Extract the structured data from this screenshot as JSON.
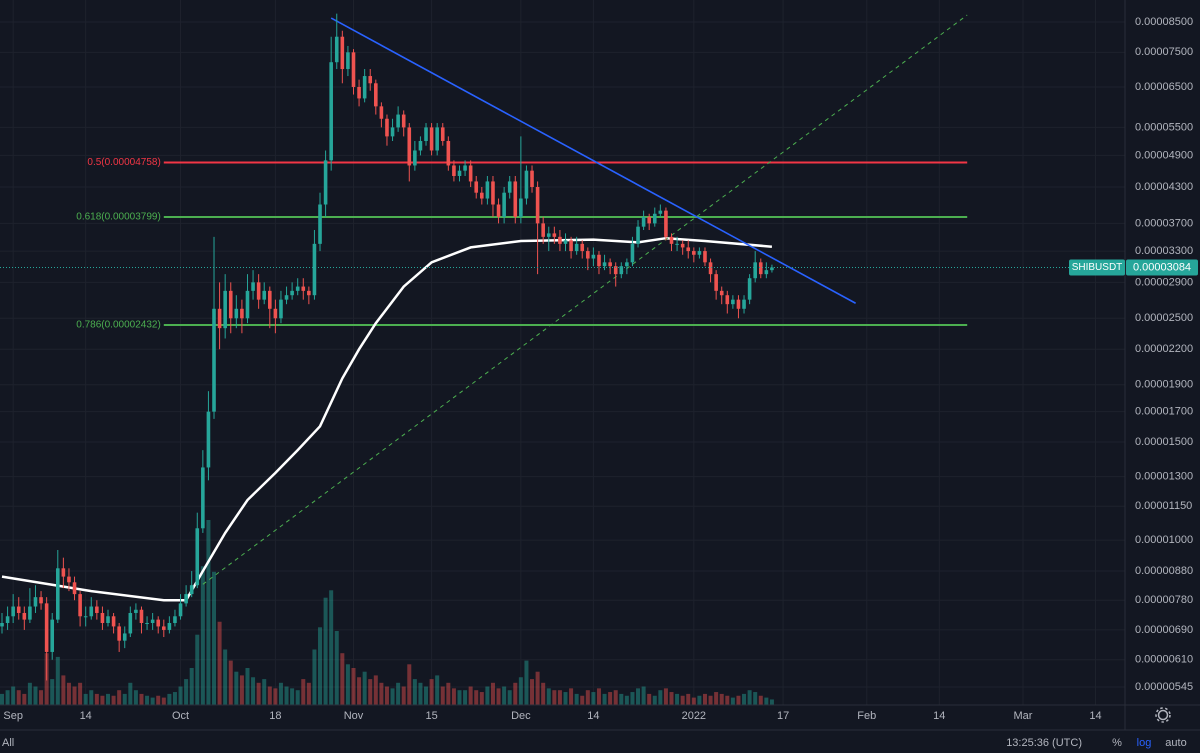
{
  "chart_data": {
    "type": "candlestick",
    "symbol": "SHIBUSDT",
    "last_price": 3.084e-05,
    "log": true,
    "grid": true,
    "up_color": "#26a69a",
    "down_color": "#ef5350",
    "xlim": [
      "2021-08-30",
      "2022-03-20"
    ],
    "ylim": [
      5.06e-06,
      9.31e-05
    ],
    "xticks": [
      {
        "value": "2021-09-01",
        "label": "Sep"
      },
      {
        "value": "2021-09-14",
        "label": "14"
      },
      {
        "value": "2021-10-01",
        "label": "Oct"
      },
      {
        "value": "2021-10-18",
        "label": "18"
      },
      {
        "value": "2021-11-01",
        "label": "Nov"
      },
      {
        "value": "2021-11-15",
        "label": "15"
      },
      {
        "value": "2021-12-01",
        "label": "Dec"
      },
      {
        "value": "2021-12-14",
        "label": "14"
      },
      {
        "value": "2022-01-01",
        "label": "2022"
      },
      {
        "value": "2022-01-17",
        "label": "17"
      },
      {
        "value": "2022-02-01",
        "label": "Feb"
      },
      {
        "value": "2022-02-14",
        "label": "14"
      },
      {
        "value": "2022-03-01",
        "label": "Mar"
      },
      {
        "value": "2022-03-14",
        "label": "14"
      }
    ],
    "yticks": [
      {
        "value": 8.5e-05,
        "label": "0.00008500"
      },
      {
        "value": 7.5e-05,
        "label": "0.00007500"
      },
      {
        "value": 6.5e-05,
        "label": "0.00006500"
      },
      {
        "value": 5.5e-05,
        "label": "0.00005500"
      },
      {
        "value": 4.9e-05,
        "label": "0.00004900"
      },
      {
        "value": 4.3e-05,
        "label": "0.00004300"
      },
      {
        "value": 3.7e-05,
        "label": "0.00003700"
      },
      {
        "value": 3.3e-05,
        "label": "0.00003300"
      },
      {
        "value": 2.9e-05,
        "label": "0.00002900"
      },
      {
        "value": 2.5e-05,
        "label": "0.00002500"
      },
      {
        "value": 2.2e-05,
        "label": "0.00002200"
      },
      {
        "value": 1.9e-05,
        "label": "0.00001900"
      },
      {
        "value": 1.7e-05,
        "label": "0.00001700"
      },
      {
        "value": 1.5e-05,
        "label": "0.00001500"
      },
      {
        "value": 1.3e-05,
        "label": "0.00001300"
      },
      {
        "value": 1.15e-05,
        "label": "0.00001150"
      },
      {
        "value": 1e-05,
        "label": "0.00001000"
      },
      {
        "value": 8.8e-06,
        "label": "0.00000880"
      },
      {
        "value": 7.8e-06,
        "label": "0.00000780"
      },
      {
        "value": 6.9e-06,
        "label": "0.00000690"
      },
      {
        "value": 6.1e-06,
        "label": "0.00000610"
      },
      5.45e-06
    ],
    "x": [
      "2021-08-30",
      "2021-08-31",
      "2021-09-01",
      "2021-09-02",
      "2021-09-03",
      "2021-09-04",
      "2021-09-05",
      "2021-09-06",
      "2021-09-07",
      "2021-09-08",
      "2021-09-09",
      "2021-09-10",
      "2021-09-11",
      "2021-09-12",
      "2021-09-13",
      "2021-09-14",
      "2021-09-15",
      "2021-09-16",
      "2021-09-17",
      "2021-09-18",
      "2021-09-19",
      "2021-09-20",
      "2021-09-21",
      "2021-09-22",
      "2021-09-23",
      "2021-09-24",
      "2021-09-25",
      "2021-09-26",
      "2021-09-27",
      "2021-09-28",
      "2021-09-29",
      "2021-09-30",
      "2021-10-01",
      "2021-10-02",
      "2021-10-03",
      "2021-10-04",
      "2021-10-05",
      "2021-10-06",
      "2021-10-07",
      "2021-10-08",
      "2021-10-09",
      "2021-10-10",
      "2021-10-11",
      "2021-10-12",
      "2021-10-13",
      "2021-10-14",
      "2021-10-15",
      "2021-10-16",
      "2021-10-17",
      "2021-10-18",
      "2021-10-19",
      "2021-10-20",
      "2021-10-21",
      "2021-10-22",
      "2021-10-23",
      "2021-10-24",
      "2021-10-25",
      "2021-10-26",
      "2021-10-27",
      "2021-10-28",
      "2021-10-29",
      "2021-10-30",
      "2021-10-31",
      "2021-11-01",
      "2021-11-02",
      "2021-11-03",
      "2021-11-04",
      "2021-11-05",
      "2021-11-06",
      "2021-11-07",
      "2021-11-08",
      "2021-11-09",
      "2021-11-10",
      "2021-11-11",
      "2021-11-12",
      "2021-11-13",
      "2021-11-14",
      "2021-11-15",
      "2021-11-16",
      "2021-11-17",
      "2021-11-18",
      "2021-11-19",
      "2021-11-20",
      "2021-11-21",
      "2021-11-22",
      "2021-11-23",
      "2021-11-24",
      "2021-11-25",
      "2021-11-26",
      "2021-11-27",
      "2021-11-28",
      "2021-11-29",
      "2021-11-30",
      "2021-12-01",
      "2021-12-02",
      "2021-12-03",
      "2021-12-04",
      "2021-12-05",
      "2021-12-06",
      "2021-12-07",
      "2021-12-08",
      "2021-12-09",
      "2021-12-10",
      "2021-12-11",
      "2021-12-12",
      "2021-12-13",
      "2021-12-14",
      "2021-12-15",
      "2021-12-16",
      "2021-12-17",
      "2021-12-18",
      "2021-12-19",
      "2021-12-20",
      "2021-12-21",
      "2021-12-22",
      "2021-12-23",
      "2021-12-24",
      "2021-12-25",
      "2021-12-26",
      "2021-12-27",
      "2021-12-28",
      "2021-12-29",
      "2021-12-30",
      "2021-12-31",
      "2022-01-01",
      "2022-01-02",
      "2022-01-03",
      "2022-01-04",
      "2022-01-05",
      "2022-01-06",
      "2022-01-07",
      "2022-01-08",
      "2022-01-09",
      "2022-01-10",
      "2022-01-11",
      "2022-01-12",
      "2022-01-13",
      "2022-01-14",
      "2022-01-15"
    ],
    "open": [
      7e-06,
      7.1e-06,
      7.3e-06,
      7.6e-06,
      7.4e-06,
      7.2e-06,
      7.6e-06,
      7.9e-06,
      7.7e-06,
      6.3e-06,
      7.2e-06,
      8.9e-06,
      8.6e-06,
      8.4e-06,
      8e-06,
      7.3e-06,
      7.3e-06,
      7.6e-06,
      7.4e-06,
      7.1e-06,
      7.3e-06,
      7e-06,
      6.6e-06,
      6.8e-06,
      7.4e-06,
      7.5e-06,
      7.1e-06,
      7.1e-06,
      7.2e-06,
      7e-06,
      6.9e-06,
      7.1e-06,
      7.3e-06,
      7.7e-06,
      8e-06,
      8.3e-06,
      1.05e-05,
      1.35e-05,
      1.7e-05,
      2.6e-05,
      2.4e-05,
      2.8e-05,
      2.5e-05,
      2.6e-05,
      2.5e-05,
      2.8e-05,
      2.9e-05,
      2.7e-05,
      2.8e-05,
      2.6e-05,
      2.5e-05,
      2.7e-05,
      2.75e-05,
      2.8e-05,
      2.85e-05,
      2.8e-05,
      2.75e-05,
      3.4e-05,
      4e-05,
      4.8e-05,
      7.2e-05,
      8e-05,
      7e-05,
      7.5e-05,
      6.5e-05,
      6.2e-05,
      6.8e-05,
      6.6e-05,
      6e-05,
      5.7e-05,
      5.3e-05,
      5.5e-05,
      5.8e-05,
      5.5e-05,
      4.7e-05,
      5e-05,
      5.2e-05,
      5.5e-05,
      5e-05,
      5.5e-05,
      5.2e-05,
      4.7e-05,
      4.5e-05,
      4.6e-05,
      4.7e-05,
      4.4e-05,
      4.2e-05,
      4.1e-05,
      4.4e-05,
      4e-05,
      3.8e-05,
      4.2e-05,
      4.4e-05,
      3.8e-05,
      4.1e-05,
      4.6e-05,
      4.3e-05,
      3.7e-05,
      3.5e-05,
      3.55e-05,
      3.5e-05,
      3.4e-05,
      3.45e-05,
      3.3e-05,
      3.4e-05,
      3.3e-05,
      3.2e-05,
      3.25e-05,
      3.1e-05,
      3.15e-05,
      3.1e-05,
      3e-05,
      3.1e-05,
      3.15e-05,
      3.4e-05,
      3.65e-05,
      3.8e-05,
      3.7e-05,
      3.85e-05,
      3.9e-05,
      3.5e-05,
      3.4e-05,
      3.4e-05,
      3.35e-05,
      3.3e-05,
      3.25e-05,
      3.3e-05,
      3.15e-05,
      3e-05,
      2.8e-05,
      2.75e-05,
      2.65e-05,
      2.7e-05,
      2.6e-05,
      2.7e-05,
      2.95e-05,
      3.15e-05,
      3e-05,
      3.05e-05
    ],
    "high": [
      7.4e-06,
      7.6e-06,
      8e-06,
      7.9e-06,
      7.6e-06,
      8.2e-06,
      8.3e-06,
      8.1e-06,
      7.9e-06,
      7.4e-06,
      9.6e-06,
      9.3e-06,
      8.9e-06,
      8.6e-06,
      8.1e-06,
      7.6e-06,
      7.9e-06,
      7.8e-06,
      7.6e-06,
      7.5e-06,
      7.4e-06,
      7.1e-06,
      7e-06,
      7.6e-06,
      7.7e-06,
      7.6e-06,
      7.3e-06,
      7.4e-06,
      7.3e-06,
      7.2e-06,
      7.3e-06,
      7.5e-06,
      8e-06,
      8.3e-06,
      8.8e-06,
      1.12e-05,
      1.45e-05,
      1.85e-05,
      3.5e-05,
      2.9e-05,
      3e-05,
      2.9e-05,
      2.75e-05,
      2.7e-05,
      3e-05,
      3.05e-05,
      3e-05,
      2.9e-05,
      2.85e-05,
      2.7e-05,
      2.8e-05,
      2.85e-05,
      2.9e-05,
      2.95e-05,
      2.95e-05,
      2.85e-05,
      3.6e-05,
      4.2e-05,
      5e-05,
      8e-05,
      8.8e-05,
      8.2e-05,
      7.7e-05,
      7.6e-05,
      6.7e-05,
      7e-05,
      7e-05,
      6.7e-05,
      6.1e-05,
      5.8e-05,
      5.7e-05,
      6e-05,
      5.9e-05,
      5.6e-05,
      5.2e-05,
      5.3e-05,
      5.6e-05,
      5.6e-05,
      5.6e-05,
      5.6e-05,
      5.3e-05,
      4.8e-05,
      4.7e-05,
      4.8e-05,
      4.8e-05,
      4.5e-05,
      4.3e-05,
      4.5e-05,
      4.5e-05,
      4.1e-05,
      4.3e-05,
      4.5e-05,
      4.5e-05,
      5.3e-05,
      4.7e-05,
      4.7e-05,
      4.4e-05,
      3.8e-05,
      3.65e-05,
      3.65e-05,
      3.6e-05,
      3.55e-05,
      3.5e-05,
      3.5e-05,
      3.45e-05,
      3.35e-05,
      3.35e-05,
      3.3e-05,
      3.25e-05,
      3.2e-05,
      3.15e-05,
      3.15e-05,
      3.2e-05,
      3.5e-05,
      3.75e-05,
      3.9e-05,
      3.85e-05,
      3.95e-05,
      4e-05,
      3.95e-05,
      3.55e-05,
      3.5e-05,
      3.45e-05,
      3.45e-05,
      3.35e-05,
      3.35e-05,
      3.35e-05,
      3.2e-05,
      3.05e-05,
      2.85e-05,
      2.8e-05,
      2.75e-05,
      2.75e-05,
      2.75e-05,
      3e-05,
      3.3e-05,
      3.2e-05,
      3.15e-05,
      3.12e-05
    ],
    "low": [
      6.8e-06,
      6.9e-06,
      7.1e-06,
      7.2e-06,
      6.9e-06,
      7.1e-06,
      7.4e-06,
      7.5e-06,
      5.6e-06,
      6.1e-06,
      7.1e-06,
      8.2e-06,
      8.1e-06,
      7.8e-06,
      7e-06,
      7e-06,
      7.2e-06,
      7.2e-06,
      6.9e-06,
      7e-06,
      6.8e-06,
      6.3e-06,
      6.4e-06,
      6.7e-06,
      7.2e-06,
      6.8e-06,
      6.9e-06,
      6.9e-06,
      6.8e-06,
      6.7e-06,
      6.8e-06,
      7e-06,
      7.2e-06,
      7.6e-06,
      7.9e-06,
      8.2e-06,
      1.03e-05,
      1.28e-05,
      1.65e-05,
      2.2e-05,
      2.3e-05,
      2.35e-05,
      2.4e-05,
      2.35e-05,
      2.45e-05,
      2.7e-05,
      2.6e-05,
      2.65e-05,
      2.4e-05,
      2.35e-05,
      2.45e-05,
      2.65e-05,
      2.7e-05,
      2.75e-05,
      2.7e-05,
      2.65e-05,
      2.7e-05,
      3.3e-05,
      3.8e-05,
      4.6e-05,
      7e-05,
      6.6e-05,
      6.8e-05,
      6.3e-05,
      6e-05,
      6.1e-05,
      6.4e-05,
      5.8e-05,
      5.5e-05,
      5.1e-05,
      5.2e-05,
      5.4e-05,
      5.3e-05,
      4.4e-05,
      4.6e-05,
      4.9e-05,
      5.1e-05,
      4.9e-05,
      4.9e-05,
      5.1e-05,
      4.6e-05,
      4.4e-05,
      4.4e-05,
      4.5e-05,
      4.3e-05,
      4.1e-05,
      4e-05,
      4e-05,
      3.8e-05,
      3.7e-05,
      3.7e-05,
      4.1e-05,
      3.7e-05,
      3.7e-05,
      4e-05,
      4.2e-05,
      3e-05,
      3.4e-05,
      3.3e-05,
      3.4e-05,
      3.3e-05,
      3.3e-05,
      3.2e-05,
      3.25e-05,
      3.2e-05,
      3.05e-05,
      3.1e-05,
      3e-05,
      3.05e-05,
      3e-05,
      2.85e-05,
      2.95e-05,
      3e-05,
      3.1e-05,
      3.35e-05,
      3.6e-05,
      3.6e-05,
      3.65e-05,
      3.8e-05,
      3.45e-05,
      3.3e-05,
      3.3e-05,
      3.25e-05,
      3.2e-05,
      3.15e-05,
      3.2e-05,
      3.1e-05,
      2.9e-05,
      2.7e-05,
      2.65e-05,
      2.55e-05,
      2.6e-05,
      2.5e-05,
      2.55e-05,
      2.65e-05,
      2.9e-05,
      2.95e-05,
      2.95e-05,
      3.02e-05
    ],
    "close": [
      7.1e-06,
      7.3e-06,
      7.6e-06,
      7.4e-06,
      7.2e-06,
      7.6e-06,
      7.9e-06,
      7.7e-06,
      6.3e-06,
      7.2e-06,
      8.9e-06,
      8.6e-06,
      8.4e-06,
      8e-06,
      7.3e-06,
      7.3e-06,
      7.6e-06,
      7.4e-06,
      7.1e-06,
      7.3e-06,
      7e-06,
      6.6e-06,
      6.8e-06,
      7.4e-06,
      7.5e-06,
      7.1e-06,
      7.1e-06,
      7.2e-06,
      7e-06,
      6.9e-06,
      7.1e-06,
      7.3e-06,
      7.7e-06,
      8e-06,
      8.3e-06,
      1.05e-05,
      1.35e-05,
      1.7e-05,
      2.6e-05,
      2.4e-05,
      2.8e-05,
      2.5e-05,
      2.6e-05,
      2.5e-05,
      2.8e-05,
      2.9e-05,
      2.7e-05,
      2.8e-05,
      2.6e-05,
      2.5e-05,
      2.7e-05,
      2.75e-05,
      2.8e-05,
      2.85e-05,
      2.8e-05,
      2.75e-05,
      3.4e-05,
      4e-05,
      4.8e-05,
      7.2e-05,
      8e-05,
      7e-05,
      7.5e-05,
      6.5e-05,
      6.2e-05,
      6.8e-05,
      6.6e-05,
      6e-05,
      5.7e-05,
      5.3e-05,
      5.5e-05,
      5.8e-05,
      5.5e-05,
      4.7e-05,
      5e-05,
      5.2e-05,
      5.5e-05,
      5e-05,
      5.5e-05,
      5.2e-05,
      4.7e-05,
      4.5e-05,
      4.6e-05,
      4.7e-05,
      4.4e-05,
      4.2e-05,
      4.1e-05,
      4.4e-05,
      4e-05,
      3.8e-05,
      4.2e-05,
      4.4e-05,
      3.8e-05,
      4.1e-05,
      4.6e-05,
      4.3e-05,
      3.7e-05,
      3.5e-05,
      3.55e-05,
      3.5e-05,
      3.4e-05,
      3.45e-05,
      3.3e-05,
      3.4e-05,
      3.3e-05,
      3.2e-05,
      3.25e-05,
      3.1e-05,
      3.15e-05,
      3.1e-05,
      3e-05,
      3.1e-05,
      3.15e-05,
      3.4e-05,
      3.65e-05,
      3.8e-05,
      3.7e-05,
      3.85e-05,
      3.9e-05,
      3.5e-05,
      3.4e-05,
      3.4e-05,
      3.35e-05,
      3.3e-05,
      3.25e-05,
      3.3e-05,
      3.15e-05,
      3e-05,
      2.8e-05,
      2.75e-05,
      2.65e-05,
      2.7e-05,
      2.6e-05,
      2.7e-05,
      2.95e-05,
      3.15e-05,
      3e-05,
      3.05e-05,
      3.084e-05
    ],
    "volume": [
      6,
      8,
      10,
      8,
      6,
      12,
      10,
      8,
      28,
      14,
      26,
      16,
      12,
      10,
      12,
      6,
      8,
      6,
      5,
      6,
      5,
      8,
      6,
      12,
      8,
      6,
      5,
      4,
      5,
      4,
      6,
      7,
      10,
      14,
      20,
      38,
      75,
      100,
      72,
      45,
      30,
      24,
      18,
      16,
      20,
      15,
      12,
      14,
      10,
      9,
      12,
      10,
      9,
      8,
      14,
      12,
      30,
      42,
      58,
      62,
      40,
      28,
      22,
      20,
      15,
      18,
      14,
      16,
      12,
      10,
      9,
      12,
      10,
      22,
      14,
      12,
      10,
      14,
      16,
      10,
      12,
      9,
      8,
      8,
      10,
      8,
      7,
      10,
      12,
      9,
      10,
      8,
      12,
      15,
      24,
      14,
      18,
      12,
      9,
      8,
      8,
      7,
      9,
      6,
      5,
      8,
      7,
      9,
      6,
      7,
      8,
      6,
      5,
      7,
      9,
      10,
      6,
      5,
      8,
      9,
      7,
      6,
      5,
      6,
      4,
      5,
      6,
      5,
      7,
      6,
      5,
      4,
      5,
      6,
      8,
      7,
      5,
      4,
      3
    ],
    "moving_average": {
      "color": "#ffffff",
      "x": [
        "2021-08-30",
        "2021-09-15",
        "2021-09-28",
        "2021-10-02",
        "2021-10-05",
        "2021-10-09",
        "2021-10-13",
        "2021-10-18",
        "2021-10-22",
        "2021-10-26",
        "2021-10-30",
        "2021-11-02",
        "2021-11-05",
        "2021-11-10",
        "2021-11-15",
        "2021-11-22",
        "2021-12-01",
        "2021-12-14",
        "2021-12-22",
        "2021-12-27",
        "2022-01-03",
        "2022-01-15"
      ],
      "values": [
        8.6e-06,
        8.1e-06,
        7.8e-06,
        7.8e-06,
        8.8e-06,
        1.03e-05,
        1.18e-05,
        1.32e-05,
        1.45e-05,
        1.6e-05,
        1.95e-05,
        2.2e-05,
        2.45e-05,
        2.85e-05,
        3.15e-05,
        3.35e-05,
        3.44e-05,
        3.46e-05,
        3.42e-05,
        3.48e-05,
        3.44e-05,
        3.36e-05
      ]
    },
    "trendlines": [
      {
        "color": "#2962ff",
        "dashed": false,
        "x": [
          "2021-10-28",
          "2022-01-30"
        ],
        "values": [
          8.64e-05,
          2.66e-05
        ]
      },
      {
        "color": "#4caf50",
        "dashed": true,
        "x": [
          "2021-10-05",
          "2022-02-19"
        ],
        "values": [
          8.33e-06,
          8.75e-05
        ]
      }
    ],
    "levels_x": [
      "2021-09-28",
      "2022-02-19"
    ],
    "levels": [
      {
        "value": 4.758e-05,
        "label": "0.5(0.00004758)",
        "color": "#f23645"
      },
      {
        "value": 3.799e-05,
        "label": "0.618(0.00003799)",
        "color": "#4caf50"
      },
      {
        "value": 2.432e-05,
        "label": "0.786(0.00002432)",
        "color": "#4caf50"
      }
    ]
  },
  "status_bar": {
    "range": "All",
    "time": "13:25:36 (UTC)",
    "percent": "%",
    "log": "log",
    "auto": "auto"
  }
}
